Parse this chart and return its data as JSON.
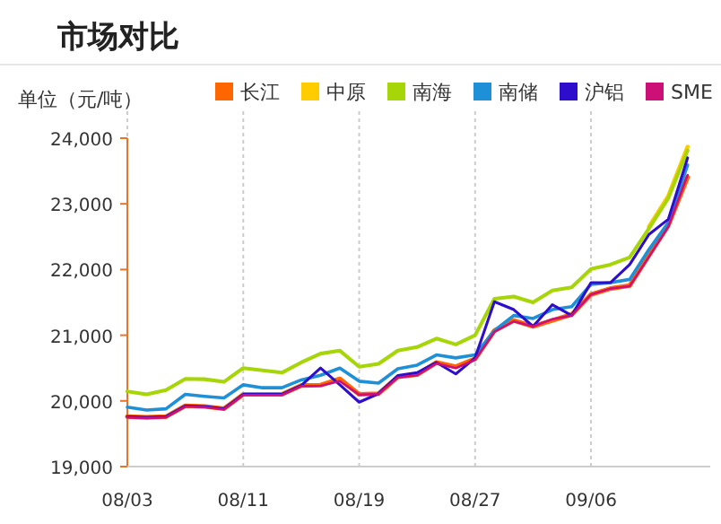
{
  "chart_data": {
    "type": "line",
    "title": "市场对比",
    "ylabel": "单位（元/吨）",
    "categories": [
      "08/03",
      null,
      null,
      null,
      null,
      null,
      "08/11",
      null,
      null,
      null,
      null,
      null,
      "08/19",
      null,
      null,
      null,
      null,
      null,
      "08/27",
      null,
      null,
      null,
      null,
      null,
      "09/06",
      null,
      null,
      null,
      null,
      null
    ],
    "series": [
      {
        "name": "长江",
        "color": "#ff6600",
        "values": [
          19760,
          19750,
          19760,
          19925,
          19915,
          19880,
          20100,
          20100,
          20100,
          20235,
          20240,
          20335,
          20100,
          20110,
          20365,
          20400,
          20585,
          20520,
          20640,
          21070,
          21225,
          21135,
          21225,
          21315,
          21620,
          21710,
          21755,
          22215,
          22670,
          23405
        ]
      },
      {
        "name": "中原",
        "color": "#ffcc00",
        "values": [
          null,
          null,
          null,
          null,
          null,
          null,
          null,
          null,
          null,
          null,
          null,
          null,
          null,
          null,
          null,
          null,
          null,
          null,
          null,
          null,
          null,
          null,
          null,
          null,
          null,
          null,
          null,
          22650,
          23120,
          23870
        ]
      },
      {
        "name": "南海",
        "color": "#a6d608",
        "values": [
          20145,
          20100,
          20165,
          20335,
          20330,
          20290,
          20500,
          20465,
          20430,
          20585,
          20720,
          20765,
          20520,
          20565,
          20765,
          20820,
          20950,
          20860,
          21000,
          21555,
          21590,
          21500,
          21680,
          21730,
          22010,
          22075,
          22185,
          22625,
          23085,
          23815
        ]
      },
      {
        "name": "南储",
        "color": "#1e90d8",
        "values": [
          19905,
          19860,
          19880,
          20100,
          20070,
          20045,
          20245,
          20200,
          20200,
          20320,
          20390,
          20500,
          20300,
          20270,
          20490,
          20545,
          20700,
          20655,
          20700,
          21070,
          21300,
          21255,
          21390,
          21435,
          21775,
          21800,
          21850,
          22305,
          22715,
          23590
        ]
      },
      {
        "name": "沪铝",
        "color": "#2e0ecc",
        "values": [
          19760,
          19750,
          19760,
          19925,
          19915,
          19880,
          20100,
          20100,
          20100,
          20235,
          20500,
          20245,
          19980,
          20110,
          20385,
          20430,
          20585,
          20410,
          20655,
          21510,
          21390,
          21135,
          21465,
          21300,
          21800,
          21800,
          22075,
          22535,
          22765,
          23700
        ]
      },
      {
        "name": "SME",
        "color": "#cc1077",
        "values": [
          19750,
          19740,
          19750,
          19915,
          19905,
          19870,
          20090,
          20090,
          20090,
          20225,
          20230,
          20300,
          20095,
          20105,
          20355,
          20390,
          20570,
          20500,
          20625,
          21050,
          21210,
          21135,
          21245,
          21300,
          21620,
          21710,
          21745,
          22195,
          22650,
          23440
        ]
      }
    ],
    "ylim": [
      19000,
      24000
    ],
    "yticks": [
      {
        "value": 19000,
        "label": "19,000"
      },
      {
        "value": 20000,
        "label": "20,000"
      },
      {
        "value": 21000,
        "label": "21,000"
      },
      {
        "value": 22000,
        "label": "22,000"
      },
      {
        "value": 23000,
        "label": "23,000"
      },
      {
        "value": 24000,
        "label": "24,000"
      }
    ],
    "grid": "x",
    "legend": "top",
    "marker": "none",
    "line_style": "solid"
  }
}
